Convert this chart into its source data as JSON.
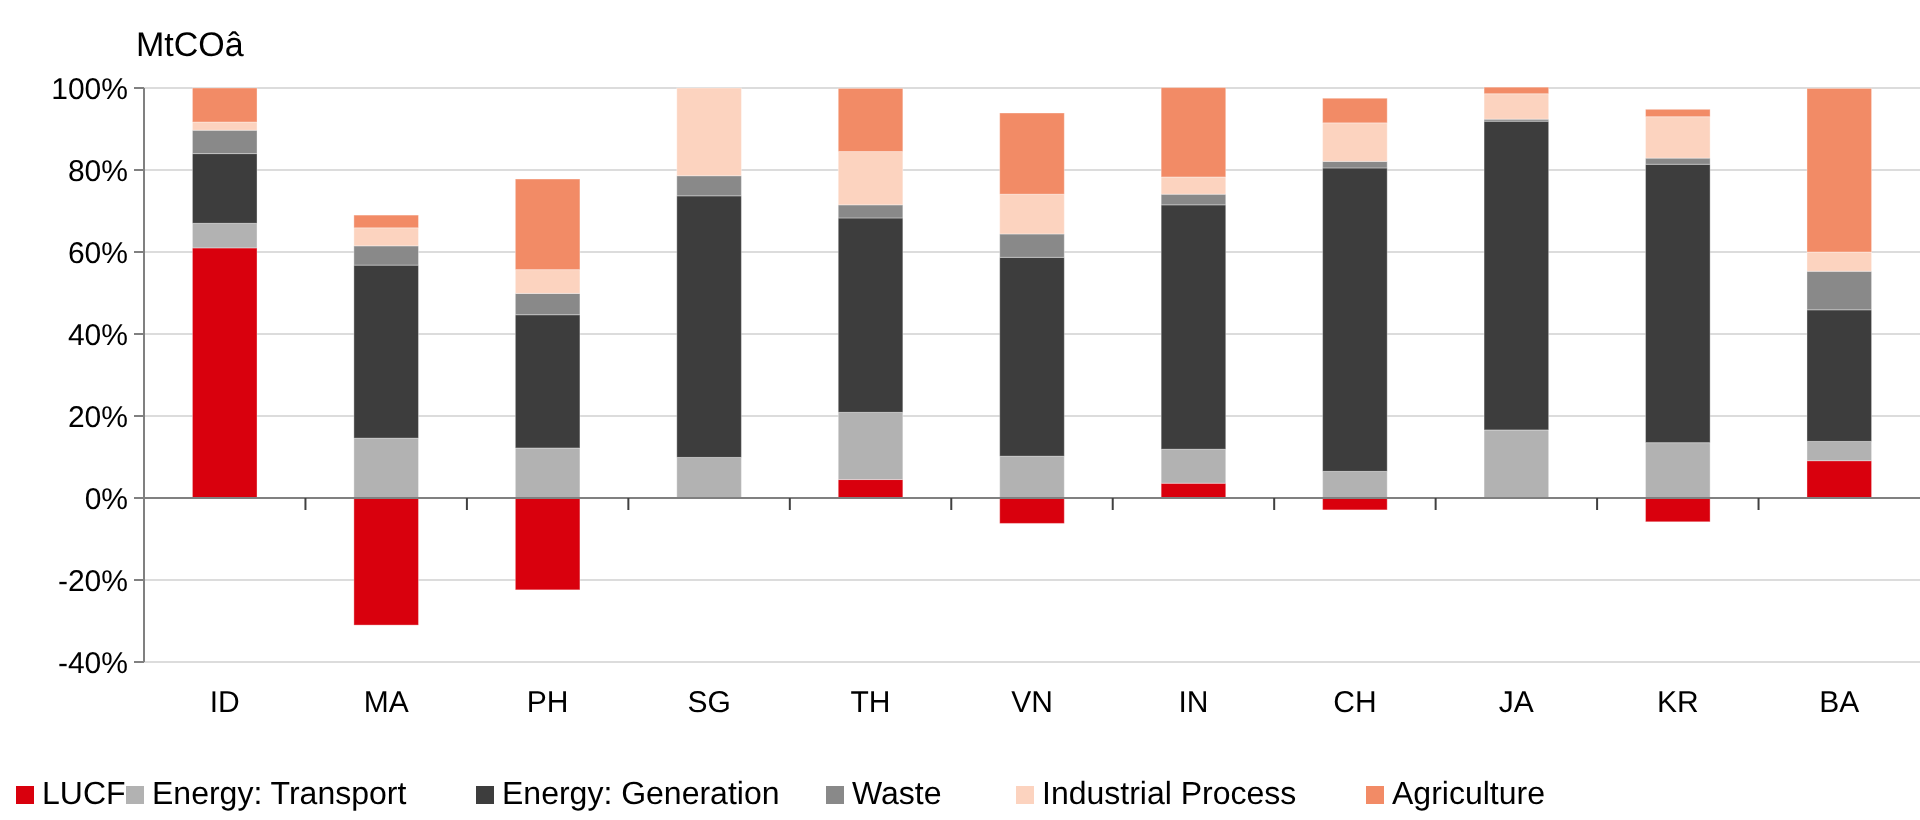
{
  "chart_data": {
    "type": "bar",
    "stacked": true,
    "ylabel": "MtCOâ",
    "categories": [
      "ID",
      "MA",
      "PH",
      "SG",
      "TH",
      "VN",
      "IN",
      "CH",
      "JA",
      "KR",
      "BA"
    ],
    "series": [
      {
        "name": "LUCF",
        "color": "#d9000d",
        "values": [
          61,
          -31,
          -22.4,
          0,
          4.5,
          -6.2,
          3.6,
          -2.9,
          0,
          -5.8,
          9.1
        ]
      },
      {
        "name": "Energy: Transport",
        "color": "#b2b2b2",
        "values": [
          6,
          14.6,
          12.2,
          9.9,
          16.4,
          10.2,
          8.3,
          6.5,
          16.6,
          13.5,
          4.7
        ]
      },
      {
        "name": "Energy: Generation",
        "color": "#3d3d3d",
        "values": [
          17,
          42.2,
          32.5,
          63.8,
          47.4,
          48.5,
          59.6,
          74,
          75.3,
          67.9,
          32.1
        ]
      },
      {
        "name": "Waste",
        "color": "#898989",
        "values": [
          5.7,
          4.7,
          5.2,
          4.9,
          3.2,
          5.7,
          2.6,
          1.6,
          0.5,
          1.5,
          9.4
        ]
      },
      {
        "name": "Industrial Process",
        "color": "#fcd3bf",
        "values": [
          2,
          4.4,
          5.8,
          21.4,
          13,
          9.7,
          4.2,
          9.4,
          6.2,
          10.1,
          4.7
        ]
      },
      {
        "name": "Agriculture",
        "color": "#f28b66",
        "values": [
          8.3,
          3.1,
          22.1,
          0,
          15.4,
          19.8,
          21.8,
          6,
          1.6,
          1.8,
          39.9
        ]
      }
    ],
    "ylim": [
      -40,
      100
    ],
    "yticks": [
      {
        "value": -40,
        "label": "-40%"
      },
      {
        "value": -20,
        "label": "-20%"
      },
      {
        "value": 0,
        "label": "0%"
      },
      {
        "value": 20,
        "label": "20%"
      },
      {
        "value": 40,
        "label": "40%"
      },
      {
        "value": 60,
        "label": "60%"
      },
      {
        "value": 80,
        "label": "80%"
      },
      {
        "value": 100,
        "label": "100%"
      }
    ],
    "grid": "y",
    "legend": "bottom"
  }
}
